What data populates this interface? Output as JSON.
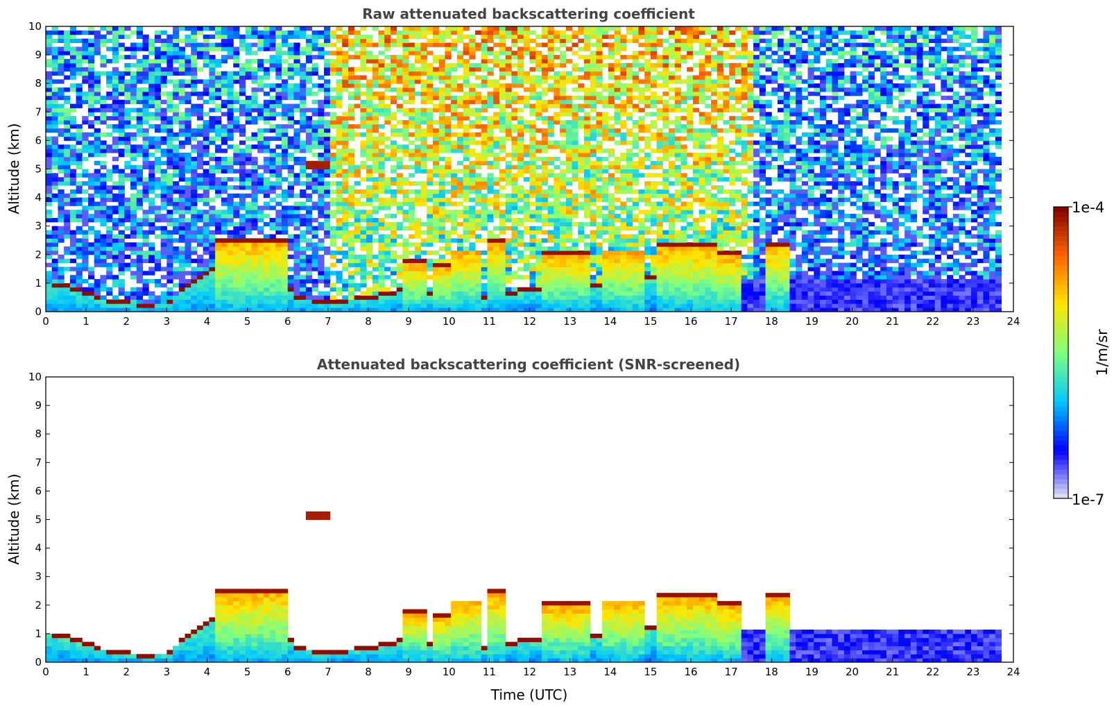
{
  "chart_data": [
    {
      "type": "heatmap",
      "title": "Raw attenuated backscattering coefficient",
      "xlabel": "",
      "ylabel": "Altitude (km)",
      "xlim": [
        0,
        24
      ],
      "ylim": [
        0,
        10
      ],
      "x_ticks": [
        "0",
        "1",
        "2",
        "3",
        "4",
        "5",
        "6",
        "7",
        "8",
        "9",
        "10",
        "11",
        "12",
        "13",
        "14",
        "15",
        "16",
        "17",
        "18",
        "19",
        "20",
        "21",
        "22",
        "23",
        "24"
      ],
      "y_ticks": [
        "0",
        "1",
        "2",
        "3",
        "4",
        "5",
        "6",
        "7",
        "8",
        "9",
        "10"
      ],
      "data_end_time": 23.7,
      "screened": false,
      "features": {
        "boundary_layer_top": [
          [
            0,
            1.0
          ],
          [
            0.5,
            0.95
          ],
          [
            1,
            0.65
          ],
          [
            1.5,
            0.4
          ],
          [
            2,
            0.3
          ],
          [
            2.5,
            0.25
          ],
          [
            3,
            0.3
          ],
          [
            3.4,
            0.8
          ],
          [
            3.8,
            1.2
          ],
          [
            4.2,
            1.5
          ],
          [
            5,
            1.8
          ],
          [
            5.8,
            1.5
          ],
          [
            6.2,
            0.5
          ],
          [
            7,
            0.35
          ],
          [
            8,
            0.5
          ],
          [
            9,
            0.8
          ],
          [
            10,
            0.4
          ],
          [
            11,
            0.5
          ],
          [
            12,
            0.8
          ],
          [
            13,
            1.0
          ],
          [
            14,
            0.9
          ],
          [
            15,
            1.2
          ],
          [
            16,
            1.5
          ],
          [
            17,
            1.2
          ]
        ],
        "cloud_layers": [
          {
            "t_start": 4.2,
            "t_end": 6.0,
            "top_km": 2.6
          },
          {
            "t_start": 8.8,
            "t_end": 9.4,
            "top_km": 1.8
          },
          {
            "t_start": 9.6,
            "t_end": 10.1,
            "top_km": 1.7
          },
          {
            "t_start": 10.1,
            "t_end": 10.8,
            "top_km": 2.2
          },
          {
            "t_start": 11.0,
            "t_end": 11.4,
            "top_km": 2.5
          },
          {
            "t_start": 12.3,
            "t_end": 13.5,
            "top_km": 2.1
          },
          {
            "t_start": 13.8,
            "t_end": 14.8,
            "top_km": 2.2
          },
          {
            "t_start": 15.2,
            "t_end": 16.6,
            "top_km": 2.4
          },
          {
            "t_start": 16.7,
            "t_end": 17.3,
            "top_km": 2.1
          },
          {
            "t_start": 17.9,
            "t_end": 18.4,
            "top_km": 2.45
          }
        ],
        "elevated_layers": [
          {
            "t_start": 6.5,
            "t_end": 7.0,
            "alt_km": 5.2
          }
        ]
      }
    },
    {
      "type": "heatmap",
      "title": "Attenuated backscattering coefficient (SNR-screened)",
      "xlabel": "Time (UTC)",
      "ylabel": "Altitude (km)",
      "xlim": [
        0,
        24
      ],
      "ylim": [
        0,
        10
      ],
      "x_ticks": [
        "0",
        "1",
        "2",
        "3",
        "4",
        "5",
        "6",
        "7",
        "8",
        "9",
        "10",
        "11",
        "12",
        "13",
        "14",
        "15",
        "16",
        "17",
        "18",
        "19",
        "20",
        "21",
        "22",
        "23",
        "24"
      ],
      "y_ticks": [
        "0",
        "1",
        "2",
        "3",
        "4",
        "5",
        "6",
        "7",
        "8",
        "9",
        "10"
      ],
      "data_end_time": 23.7,
      "screened": true
    }
  ],
  "colorbar": {
    "label": "1/m/sr",
    "max_label": "1e-4",
    "min_label": "1e-7",
    "scale": "log",
    "range": [
      1e-07,
      0.0001
    ],
    "colormap": "jet",
    "colors": [
      "#e6e6f5",
      "#0000ff",
      "#00c8ff",
      "#80ff80",
      "#ffe600",
      "#ff6400",
      "#800000"
    ]
  }
}
